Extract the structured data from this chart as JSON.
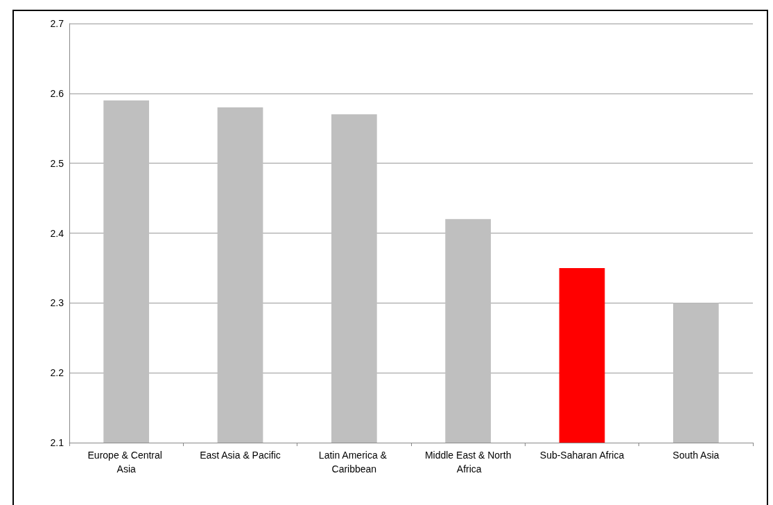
{
  "chart_data": {
    "type": "bar",
    "categories": [
      "Europe & Central Asia",
      "East Asia & Pacific",
      "Latin America & Caribbean",
      "Middle East & North Africa",
      "Sub-Saharan Africa",
      "South Asia"
    ],
    "values": [
      2.59,
      2.58,
      2.57,
      2.42,
      2.35,
      2.3
    ],
    "colors": [
      "#bfbfbf",
      "#bfbfbf",
      "#bfbfbf",
      "#bfbfbf",
      "#ff0000",
      "#bfbfbf"
    ],
    "ylim": [
      2.1,
      2.7
    ],
    "yticks": [
      2.1,
      2.2,
      2.3,
      2.4,
      2.5,
      2.6,
      2.7
    ],
    "grid": "y"
  }
}
